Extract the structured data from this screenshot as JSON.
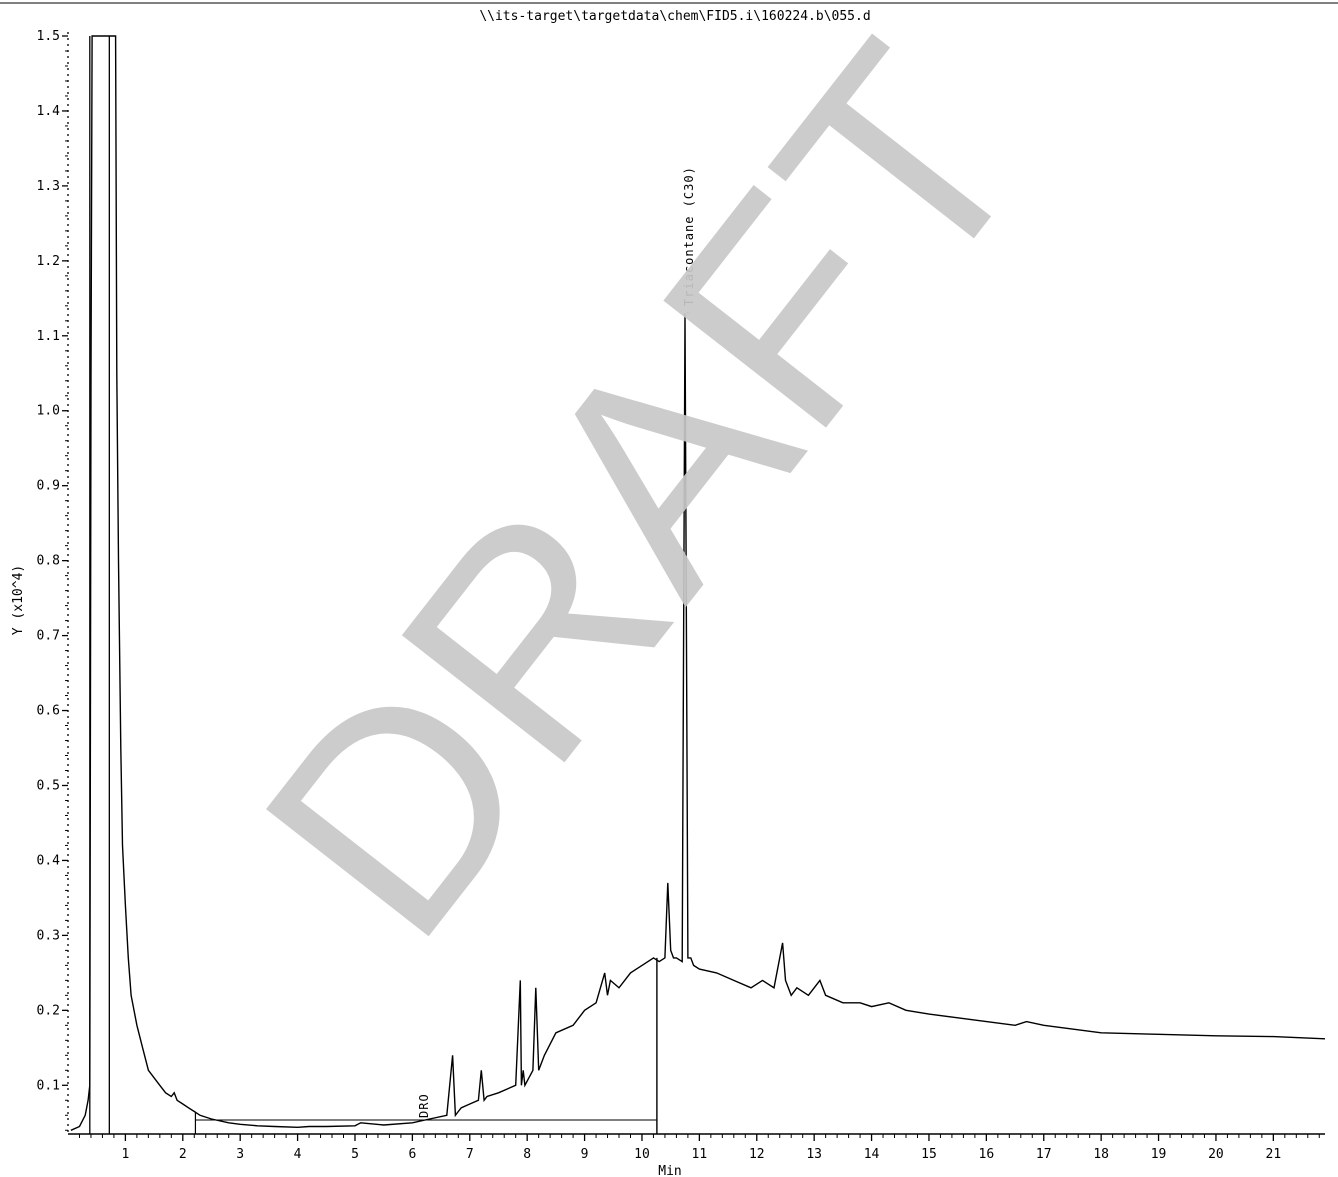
{
  "chart_data": {
    "type": "line",
    "title": "\\\\its-target\\targetdata\\chem\\FID5.i\\160224.b\\055.d",
    "xlabel": "Min",
    "ylabel": "Y (x10^4)",
    "xlim": [
      0,
      21.9
    ],
    "ylim": [
      0.035,
      1.5
    ],
    "x_ticks": [
      "1",
      "2",
      "3",
      "4",
      "5",
      "6",
      "7",
      "8",
      "9",
      "10",
      "11",
      "12",
      "13",
      "14",
      "15",
      "16",
      "17",
      "18",
      "19",
      "20",
      "21"
    ],
    "y_ticks": [
      "0.1",
      "0.2",
      "0.3",
      "0.4",
      "0.5",
      "0.6",
      "0.7",
      "0.8",
      "0.9",
      "1.0",
      "1.1",
      "1.2",
      "1.3",
      "1.4",
      "1.5"
    ],
    "y_tick_values": [
      0.1,
      0.2,
      0.3,
      0.4,
      0.5,
      0.6,
      0.7,
      0.8,
      0.9,
      1.0,
      1.1,
      1.2,
      1.3,
      1.4,
      1.5
    ],
    "grid": false,
    "series": [
      {
        "x": [
          0.05,
          0.2,
          0.3,
          0.35,
          0.38,
          0.4,
          0.42,
          0.45,
          0.5,
          0.55,
          0.62,
          0.7,
          0.72,
          0.8,
          0.83,
          0.85,
          0.88,
          0.92,
          0.95,
          1.0,
          1.05,
          1.08,
          1.1,
          1.2,
          1.3,
          1.4,
          1.5,
          1.6,
          1.7,
          1.8,
          1.85,
          1.9,
          2.0,
          2.1,
          2.2,
          2.3,
          2.5,
          2.8,
          3.0,
          3.3,
          3.6,
          4.0,
          4.2,
          4.5,
          5.0,
          5.1,
          5.5,
          6.0,
          6.3,
          6.6,
          6.7,
          6.75,
          6.8,
          6.85,
          7.0,
          7.15,
          7.2,
          7.25,
          7.3,
          7.5,
          7.8,
          7.88,
          7.9,
          7.93,
          7.96,
          8.1,
          8.15,
          8.2,
          8.3,
          8.5,
          8.8,
          9.0,
          9.2,
          9.35,
          9.4,
          9.45,
          9.6,
          9.8,
          10.0,
          10.2,
          10.3,
          10.4,
          10.45,
          10.5,
          10.55,
          10.6,
          10.7,
          10.75,
          10.8,
          10.85,
          10.9,
          11.0,
          11.3,
          11.6,
          11.9,
          12.1,
          12.3,
          12.45,
          12.5,
          12.6,
          12.7,
          12.9,
          13.0,
          13.1,
          13.2,
          13.5,
          13.8,
          14.0,
          14.3,
          14.6,
          15.0,
          15.5,
          16.0,
          16.5,
          16.7,
          17.0,
          17.5,
          18.0,
          19.0,
          20.0,
          21.0,
          21.9
        ],
        "values": [
          0.04,
          0.045,
          0.06,
          0.08,
          0.1,
          1.05,
          1.5,
          1.5,
          1.5,
          1.5,
          1.5,
          1.5,
          1.5,
          1.5,
          1.5,
          1.05,
          0.8,
          0.55,
          0.42,
          0.34,
          0.27,
          0.24,
          0.22,
          0.18,
          0.15,
          0.12,
          0.11,
          0.1,
          0.09,
          0.085,
          0.09,
          0.08,
          0.075,
          0.07,
          0.065,
          0.06,
          0.055,
          0.05,
          0.048,
          0.046,
          0.045,
          0.044,
          0.045,
          0.045,
          0.046,
          0.05,
          0.047,
          0.05,
          0.055,
          0.06,
          0.14,
          0.06,
          0.065,
          0.07,
          0.075,
          0.08,
          0.12,
          0.08,
          0.085,
          0.09,
          0.1,
          0.24,
          0.1,
          0.12,
          0.1,
          0.12,
          0.23,
          0.12,
          0.14,
          0.17,
          0.18,
          0.2,
          0.21,
          0.25,
          0.22,
          0.24,
          0.23,
          0.25,
          0.26,
          0.27,
          0.265,
          0.27,
          0.37,
          0.28,
          0.27,
          0.27,
          0.265,
          1.13,
          0.27,
          0.27,
          0.26,
          0.255,
          0.25,
          0.24,
          0.23,
          0.24,
          0.23,
          0.29,
          0.24,
          0.22,
          0.23,
          0.22,
          0.23,
          0.24,
          0.22,
          0.21,
          0.21,
          0.205,
          0.21,
          0.2,
          0.195,
          0.19,
          0.185,
          0.18,
          0.185,
          0.18,
          0.175,
          0.17,
          0.168,
          0.166,
          0.165,
          0.162
        ]
      }
    ],
    "annotations": [
      "DRO",
      "Triacontane (C30)"
    ]
  },
  "watermark": {
    "text": "DRAFT"
  },
  "colors": {
    "line": "#000000",
    "watermark": "#c8c8c8",
    "background": "#ffffff"
  }
}
